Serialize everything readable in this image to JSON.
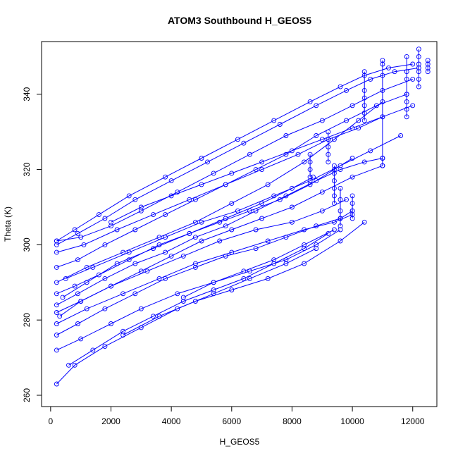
{
  "chart_data": {
    "type": "line",
    "title": "ATOM3 Southbound H_GEOS5",
    "xlabel": "H_GEOS5",
    "ylabel": "Theta (K)",
    "xlim": [
      -300,
      12800
    ],
    "ylim": [
      257,
      354
    ],
    "xticks": [
      0,
      2000,
      4000,
      6000,
      8000,
      10000,
      12000
    ],
    "yticks": [
      260,
      280,
      300,
      320,
      340
    ],
    "grid": false,
    "legend": "none",
    "color": "#0000ff",
    "marker": "open-circle",
    "series": [
      {
        "x": [
          200,
          800,
          1600,
          2600,
          3800,
          5000,
          6200,
          7400,
          8600,
          9600,
          10400,
          11200,
          12000
        ],
        "y": [
          301,
          304,
          308,
          313,
          318,
          323,
          328,
          333,
          338,
          342,
          345,
          347,
          348
        ]
      },
      {
        "x": [
          200,
          900,
          1800,
          2800,
          4000,
          5200,
          6400,
          7600,
          8800,
          9800,
          10600,
          11400,
          12200
        ],
        "y": [
          300,
          303,
          307,
          312,
          317,
          322,
          327,
          332,
          337,
          341,
          344,
          346,
          347
        ]
      },
      {
        "x": [
          200,
          1000,
          2000,
          3000,
          4200,
          5400,
          6600,
          7800,
          9000,
          10000,
          11000,
          12000
        ],
        "y": [
          301,
          302,
          305,
          309,
          314,
          319,
          324,
          329,
          333,
          337,
          341,
          344
        ]
      },
      {
        "x": [
          200,
          900,
          1800,
          2800,
          3800,
          4800,
          5800,
          6800,
          7800,
          8800,
          9800,
          10800,
          11800
        ],
        "y": [
          294,
          296,
          300,
          304,
          308,
          312,
          316,
          320,
          324,
          329,
          333,
          337,
          340
        ]
      },
      {
        "x": [
          200,
          1200,
          2400,
          3600,
          4800,
          6000,
          7200,
          8400,
          9400,
          10200,
          11000
        ],
        "y": [
          290,
          294,
          298,
          302,
          306,
          311,
          316,
          322,
          328,
          333,
          338
        ]
      },
      {
        "x": [
          200,
          800,
          1600,
          2600,
          3600,
          4600,
          5600,
          6600,
          7600,
          8600,
          9400,
          10000
        ],
        "y": [
          287,
          289,
          292,
          296,
          300,
          303,
          306,
          309,
          312,
          316,
          320,
          323
        ]
      },
      {
        "x": [
          200,
          900,
          1800,
          2800,
          3800,
          4800,
          5800,
          6800,
          7800,
          8800,
          9600,
          10400,
          11000
        ],
        "y": [
          284,
          287,
          291,
          295,
          298,
          302,
          305,
          309,
          313,
          317,
          320,
          322,
          323
        ]
      },
      {
        "x": [
          200,
          1000,
          2000,
          3000,
          4000,
          5000,
          6000,
          7000,
          8000,
          9000,
          10000,
          11000
        ],
        "y": [
          282,
          285,
          289,
          293,
          297,
          301,
          304,
          307,
          310,
          314,
          318,
          321
        ]
      },
      {
        "x": [
          200,
          1200,
          2400,
          3600,
          4800,
          6000,
          7200,
          8400,
          9400,
          10000
        ],
        "y": [
          279,
          283,
          287,
          291,
          295,
          298,
          301,
          304,
          306,
          308
        ]
      },
      {
        "x": [
          200,
          900,
          1800,
          2800,
          3800,
          4800,
          5800,
          6800,
          7800,
          8800,
          9600,
          10000
        ],
        "y": [
          276,
          279,
          283,
          287,
          291,
          294,
          297,
          299,
          302,
          305,
          307,
          309
        ]
      },
      {
        "x": [
          200,
          1000,
          2000,
          3000,
          4200,
          5400,
          6600,
          7800,
          8800,
          9600
        ],
        "y": [
          272,
          275,
          279,
          283,
          287,
          290,
          293,
          296,
          300,
          304
        ]
      },
      {
        "x": [
          600,
          1400,
          2400,
          3400,
          4400,
          5400,
          6400,
          7400,
          8400,
          9200
        ],
        "y": [
          268,
          272,
          277,
          281,
          285,
          288,
          291,
          295,
          299,
          303
        ]
      },
      {
        "x": [
          200,
          800,
          1800,
          3000,
          4200,
          5400,
          6600,
          7800,
          8800
        ],
        "y": [
          263,
          268,
          273,
          278,
          283,
          287,
          291,
          295,
          299
        ]
      },
      {
        "x": [
          400,
          1200,
          2200,
          3400,
          4600,
          5800,
          7000,
          8000,
          8700
        ],
        "y": [
          286,
          290,
          295,
          299,
          303,
          307,
          311,
          315,
          318
        ]
      },
      {
        "x": [
          300,
          1000,
          2000,
          3200,
          4400,
          5600,
          6800,
          8000,
          9000,
          9800
        ],
        "y": [
          281,
          285,
          289,
          293,
          297,
          301,
          304,
          306,
          309,
          312
        ]
      },
      {
        "x": [
          500,
          1400,
          2600,
          3800,
          5000,
          6200,
          7400,
          8600,
          9600,
          10600,
          11600
        ],
        "y": [
          291,
          294,
          298,
          302,
          306,
          309,
          313,
          317,
          321,
          325,
          329
        ]
      },
      {
        "x": [
          200,
          1100,
          2200,
          3400,
          4600,
          5800,
          7000,
          8200,
          9200,
          10200,
          11000
        ],
        "y": [
          298,
          300,
          304,
          308,
          312,
          316,
          320,
          324,
          328,
          331,
          334
        ]
      },
      {
        "x": [
          2000,
          3000,
          4000,
          5000,
          6000,
          7000,
          8000,
          9000,
          10000,
          11000,
          12000
        ],
        "y": [
          306,
          310,
          313,
          316,
          319,
          322,
          325,
          328,
          331,
          334,
          337
        ]
      },
      {
        "x": [
          4400,
          5400,
          6400,
          7400,
          8400,
          9400
        ],
        "y": [
          286,
          290,
          293,
          296,
          300,
          304
        ]
      },
      {
        "x": [
          2400,
          3600,
          4800,
          6000,
          7200,
          8400,
          9600,
          10400
        ],
        "y": [
          276,
          281,
          285,
          288,
          291,
          295,
          301,
          306
        ]
      }
    ],
    "clusters": [
      {
        "x": 8600,
        "y": [
          318,
          320,
          322,
          324
        ]
      },
      {
        "x": 9200,
        "y": [
          322,
          324,
          326,
          328,
          330
        ]
      },
      {
        "x": 9400,
        "y": [
          311,
          313,
          315,
          317,
          319,
          321
        ]
      },
      {
        "x": 9600,
        "y": [
          305,
          307,
          309,
          312,
          315
        ]
      },
      {
        "x": 10000,
        "y": [
          307,
          309,
          311,
          313
        ]
      },
      {
        "x": 10400,
        "y": [
          333,
          335,
          337,
          339,
          341,
          346
        ]
      },
      {
        "x": 11000,
        "y": [
          321,
          323,
          345,
          348,
          349
        ]
      },
      {
        "x": 11800,
        "y": [
          334,
          336,
          338,
          340,
          344,
          346,
          350
        ]
      },
      {
        "x": 12200,
        "y": [
          342,
          344,
          346,
          348,
          350,
          352
        ]
      },
      {
        "x": 12500,
        "y": [
          346,
          347,
          348,
          349
        ]
      }
    ]
  }
}
